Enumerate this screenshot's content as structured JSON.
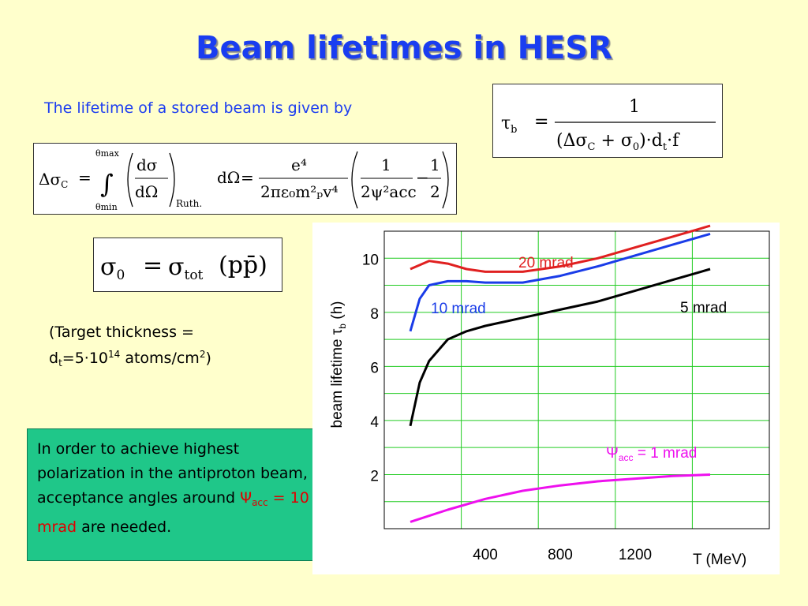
{
  "slide": {
    "title": "Beam lifetimes in HESR",
    "intro": "The lifetime of a stored beam is given by",
    "target_note": {
      "line1": "(Target thickness =",
      "d": "d",
      "d_sub": "t",
      "eq": "=5·10",
      "exp": "14",
      "unit": " atoms/cm",
      "unit_exp": "2",
      "close": ")"
    },
    "conclusion": {
      "text1": "In order to achieve highest polarization in the antiproton beam, acceptance angles around ",
      "psi": "Ψ",
      "psi_sub": "acc",
      "highlight": " = 10 mrad",
      "text2": " are needed."
    },
    "accent_colors": {
      "title": "#1a3df0",
      "intro": "#1c3df0",
      "box": "#1fc789",
      "highlight": "#e00000"
    }
  },
  "formulas": {
    "tau": {
      "tau": "τ",
      "tau_sub": "b",
      "eq": "=",
      "num": "1",
      "den_open": "(Δσ",
      "den_sub_c": "C",
      "den_plus": " + σ",
      "den_sub_0": "0",
      "den_close": ")·d",
      "den_sub_t": "t",
      "den_f": "·f"
    },
    "delta_sigma": {
      "lhs": "Δσ",
      "lhs_sub": "C",
      "eq": "=",
      "int_upper": "θmax",
      "int_lower": "θmin",
      "int": "∫",
      "dsig_num": "dσ",
      "dsig_den": "dΩ",
      "ruth": "Ruth.",
      "domega": "dΩ",
      "eq2": "=",
      "frac_num": "e⁴",
      "frac_den": "2πε₀m²ₚv⁴",
      "b_num1": "1",
      "b_den1": "2ψ²acc",
      "minus": "−",
      "b_num2": "1",
      "b_den2": "2"
    },
    "sigma0": {
      "lhs": "σ",
      "lhs_sub": "0",
      "eq": "=",
      "rhs": "σ",
      "rhs_sub": "tot",
      "arg": "(pp̄)"
    }
  },
  "chart_data": {
    "type": "line",
    "title": "",
    "xlabel": "T (MeV)",
    "ylabel": "beam lifetime τb (h)",
    "xlim": [
      0,
      1600
    ],
    "ylim": [
      0,
      11
    ],
    "x_ticks": [
      400,
      800,
      1200
    ],
    "y_ticks": [
      2,
      4,
      6,
      8,
      10
    ],
    "grid": true,
    "series": [
      {
        "name": "20 mrad",
        "color": "#e02020",
        "x": [
          0,
          100,
          200,
          300,
          400,
          600,
          800,
          1000,
          1200,
          1400,
          1600
        ],
        "y": [
          9.6,
          9.9,
          9.8,
          9.6,
          9.5,
          9.5,
          9.7,
          10.0,
          10.4,
          10.8,
          11.2
        ]
      },
      {
        "name": "10 mrad",
        "color": "#1a3ce8",
        "x": [
          0,
          50,
          100,
          200,
          300,
          400,
          600,
          800,
          1000,
          1200,
          1400,
          1600
        ],
        "y": [
          7.3,
          8.5,
          9.0,
          9.15,
          9.15,
          9.1,
          9.1,
          9.35,
          9.7,
          10.1,
          10.5,
          10.9
        ]
      },
      {
        "name": "5 mrad",
        "color": "#000000",
        "x": [
          0,
          50,
          100,
          200,
          300,
          400,
          600,
          800,
          1000,
          1200,
          1400,
          1600
        ],
        "y": [
          3.8,
          5.4,
          6.2,
          7.0,
          7.3,
          7.5,
          7.8,
          8.1,
          8.4,
          8.8,
          9.2,
          9.6
        ]
      },
      {
        "name": "Ψacc = 1 mrad",
        "color": "#ee10ee",
        "x": [
          0,
          200,
          400,
          600,
          800,
          1000,
          1200,
          1400,
          1600
        ],
        "y": [
          0.25,
          0.7,
          1.1,
          1.4,
          1.6,
          1.75,
          1.85,
          1.95,
          2.0
        ]
      }
    ]
  }
}
